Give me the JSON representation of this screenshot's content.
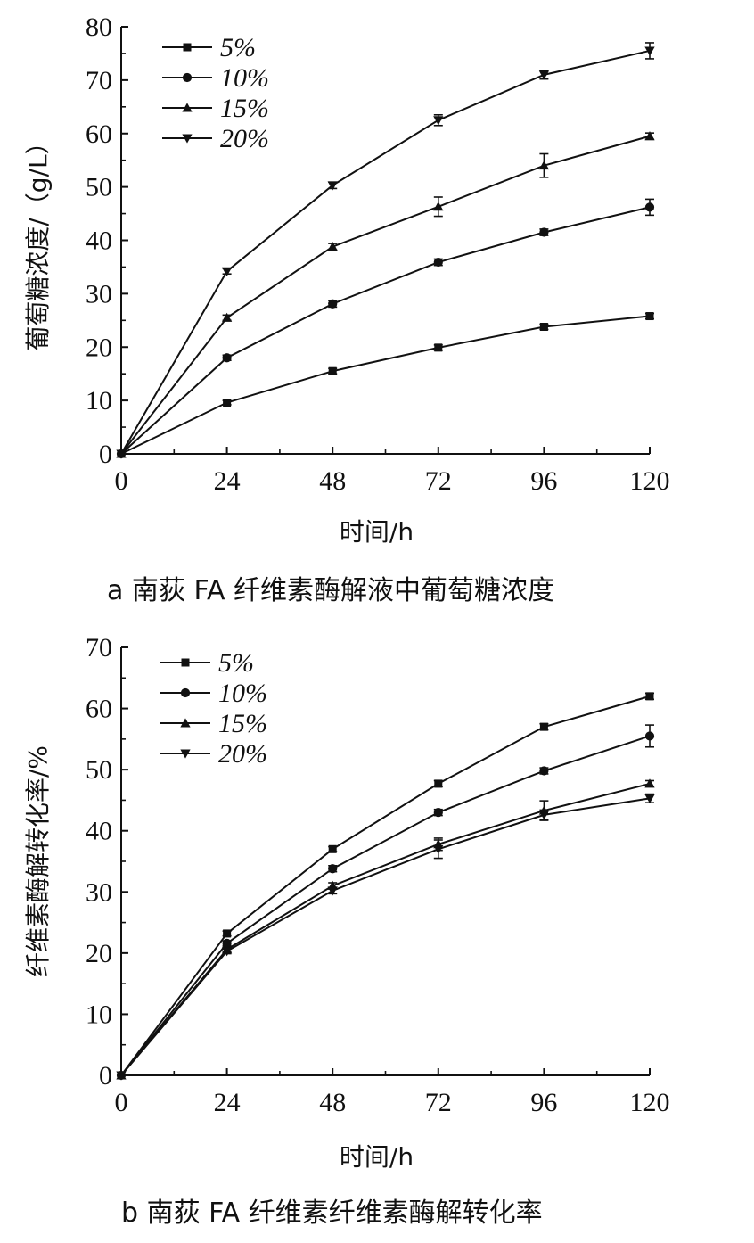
{
  "chart_data": [
    {
      "type": "line",
      "caption": "a 南荻 FA 纤维素酶解液中葡萄糖浓度",
      "xlabel": "时间/h",
      "ylabel": "葡萄糖浓度/（g/L）",
      "x": [
        0,
        24,
        48,
        72,
        96,
        120
      ],
      "xticks": [
        "0",
        "24",
        "48",
        "72",
        "96",
        "120"
      ],
      "xlim": [
        0,
        120
      ],
      "ylim": [
        0,
        80
      ],
      "yticks": [
        "0",
        "10",
        "20",
        "30",
        "40",
        "50",
        "60",
        "70",
        "80"
      ],
      "grid": false,
      "legend_position": "top-left",
      "series": [
        {
          "name": "5%",
          "marker": "square",
          "values": [
            0,
            9.6,
            15.5,
            19.9,
            23.8,
            25.8
          ],
          "errors": [
            0,
            0.4,
            0.5,
            0.5,
            0.5,
            0.5
          ]
        },
        {
          "name": "10%",
          "marker": "circle",
          "values": [
            0,
            18.0,
            28.1,
            35.9,
            41.5,
            46.2
          ],
          "errors": [
            0,
            0.5,
            0.6,
            0.6,
            0.6,
            1.5
          ]
        },
        {
          "name": "15%",
          "marker": "triangle-up",
          "values": [
            0,
            25.5,
            38.8,
            46.3,
            54.0,
            59.5
          ],
          "errors": [
            0,
            0.5,
            0.6,
            1.8,
            2.2,
            0.6
          ]
        },
        {
          "name": "20%",
          "marker": "triangle-down",
          "values": [
            0,
            34.2,
            50.3,
            62.5,
            71.0,
            75.5
          ],
          "errors": [
            0,
            0.5,
            0.6,
            1.0,
            0.8,
            1.5
          ]
        }
      ]
    },
    {
      "type": "line",
      "caption": "b 南荻 FA 纤维素纤维素酶解转化率",
      "xlabel": "时间/h",
      "ylabel": "纤维素酶解转化率/%",
      "x": [
        0,
        24,
        48,
        72,
        96,
        120
      ],
      "xticks": [
        "0",
        "24",
        "48",
        "72",
        "96",
        "120"
      ],
      "xlim": [
        0,
        120
      ],
      "ylim": [
        0,
        70
      ],
      "yticks": [
        "0",
        "10",
        "20",
        "30",
        "40",
        "50",
        "60",
        "70"
      ],
      "grid": false,
      "legend_position": "top-left",
      "series": [
        {
          "name": "5%",
          "marker": "square",
          "values": [
            0,
            23.2,
            37.0,
            47.7,
            57.0,
            62.0
          ],
          "errors": [
            0,
            0.4,
            0.4,
            0.5,
            0.5,
            0.5
          ]
        },
        {
          "name": "10%",
          "marker": "circle",
          "values": [
            0,
            21.6,
            33.8,
            43.0,
            49.8,
            55.5
          ],
          "errors": [
            0,
            0.4,
            0.5,
            0.5,
            0.5,
            1.8
          ]
        },
        {
          "name": "15%",
          "marker": "triangle-up",
          "values": [
            0,
            20.6,
            31.0,
            37.8,
            43.3,
            47.7
          ],
          "errors": [
            0,
            0.4,
            0.5,
            1.0,
            1.6,
            0.5
          ]
        },
        {
          "name": "20%",
          "marker": "triangle-down",
          "values": [
            0,
            20.3,
            30.2,
            37.0,
            42.6,
            45.3
          ],
          "errors": [
            0,
            0.4,
            0.5,
            1.5,
            0.8,
            0.7
          ]
        }
      ]
    }
  ]
}
